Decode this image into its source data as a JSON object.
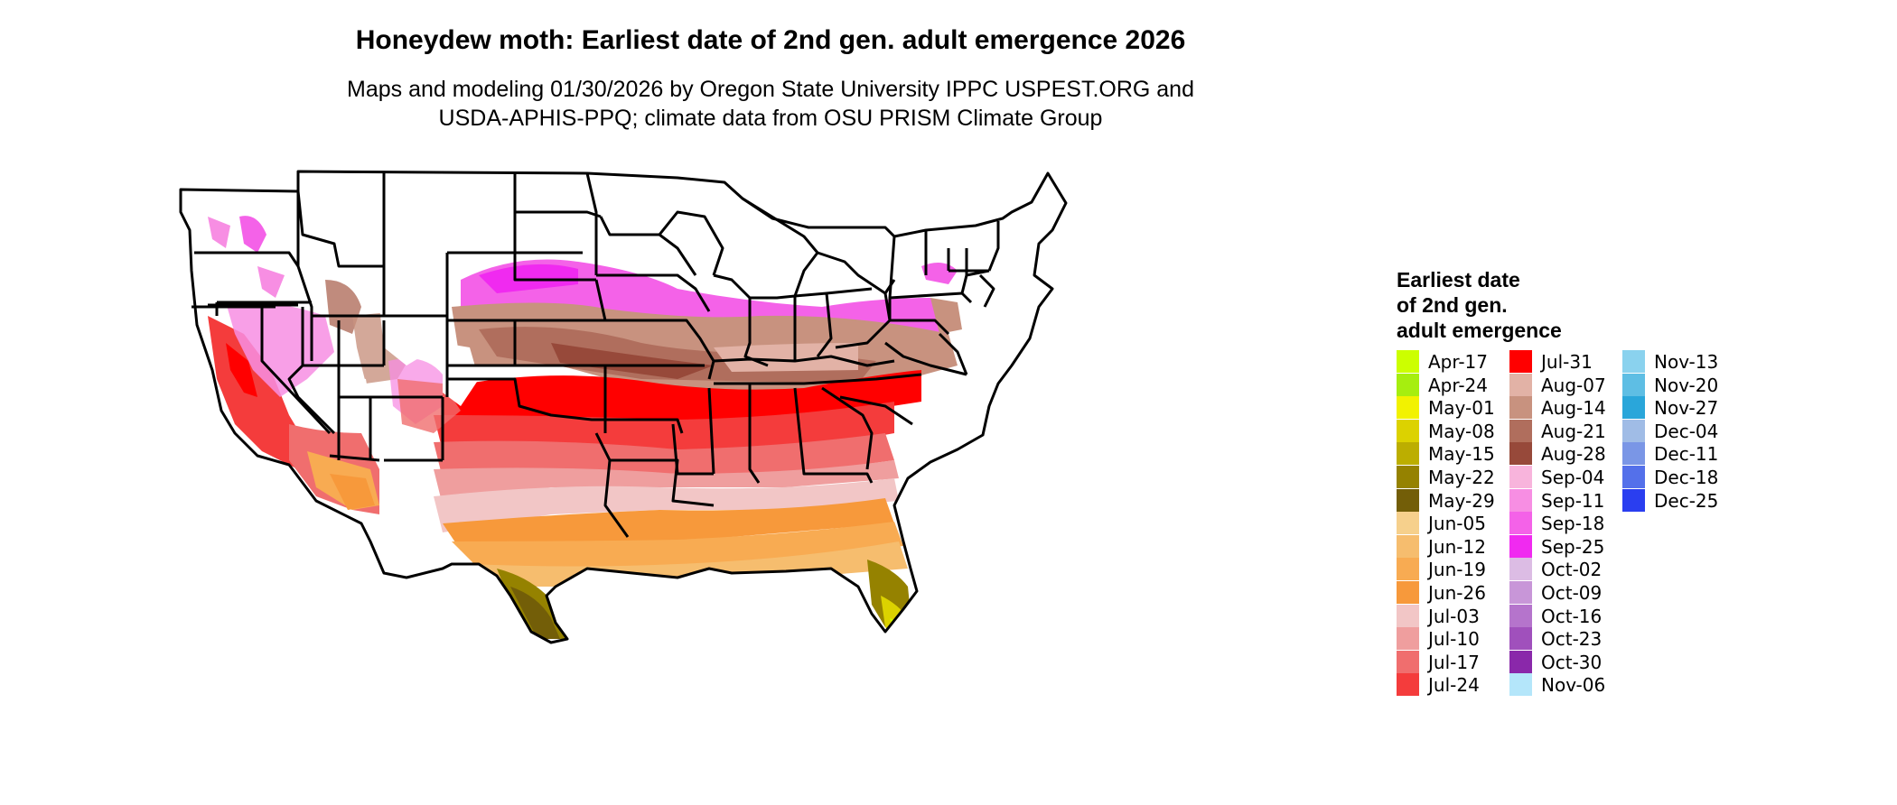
{
  "header": {
    "title": "Honeydew moth: Earliest date of 2nd gen. adult emergence 2026",
    "subtitle_line1": "Maps and modeling 01/30/2026 by Oregon State University IPPC USPEST.ORG and",
    "subtitle_line2": "USDA-APHIS-PPQ; climate data from OSU PRISM Climate Group"
  },
  "legend": {
    "title_lines": [
      "Earliest date",
      "of 2nd gen.",
      "adult emergence"
    ],
    "columns": [
      [
        {
          "label": "Apr-17",
          "color": "#ccff00"
        },
        {
          "label": "Apr-24",
          "color": "#a6ee0f"
        },
        {
          "label": "May-01",
          "color": "#f2f200"
        },
        {
          "label": "May-08",
          "color": "#dcd200"
        },
        {
          "label": "May-15",
          "color": "#bcae00"
        },
        {
          "label": "May-22",
          "color": "#958200"
        },
        {
          "label": "May-29",
          "color": "#735e08"
        },
        {
          "label": "Jun-05",
          "color": "#f6d08c"
        },
        {
          "label": "Jun-12",
          "color": "#f6bd6e"
        },
        {
          "label": "Jun-19",
          "color": "#f8ab52"
        },
        {
          "label": "Jun-26",
          "color": "#f7993b"
        },
        {
          "label": "Jul-03",
          "color": "#f2c6c6"
        },
        {
          "label": "Jul-10",
          "color": "#ef9e9e"
        },
        {
          "label": "Jul-17",
          "color": "#f06e6e"
        },
        {
          "label": "Jul-24",
          "color": "#f43c3c"
        }
      ],
      [
        {
          "label": "Jul-31",
          "color": "#ff0000"
        },
        {
          "label": "Aug-07",
          "color": "#e2b2a6"
        },
        {
          "label": "Aug-14",
          "color": "#c8927f"
        },
        {
          "label": "Aug-21",
          "color": "#b06e5d"
        },
        {
          "label": "Aug-28",
          "color": "#97493a"
        },
        {
          "label": "Sep-04",
          "color": "#f8b4dc"
        },
        {
          "label": "Sep-11",
          "color": "#f78ee3"
        },
        {
          "label": "Sep-18",
          "color": "#f462e8"
        },
        {
          "label": "Sep-25",
          "color": "#f02af0"
        },
        {
          "label": "Oct-02",
          "color": "#dcbce4"
        },
        {
          "label": "Oct-09",
          "color": "#c896d8"
        },
        {
          "label": "Oct-16",
          "color": "#b574cc"
        },
        {
          "label": "Oct-23",
          "color": "#a050bc"
        },
        {
          "label": "Oct-30",
          "color": "#8a28aa"
        },
        {
          "label": "Nov-06",
          "color": "#b4e6fa"
        }
      ],
      [
        {
          "label": "Nov-13",
          "color": "#8ad2ee"
        },
        {
          "label": "Nov-20",
          "color": "#5ebee4"
        },
        {
          "label": "Nov-27",
          "color": "#2aa6da"
        },
        {
          "label": "Dec-04",
          "color": "#a0bce6"
        },
        {
          "label": "Dec-11",
          "color": "#7a96e6"
        },
        {
          "label": "Dec-18",
          "color": "#5470ea"
        },
        {
          "label": "Dec-25",
          "color": "#2a3ef0"
        }
      ]
    ]
  }
}
